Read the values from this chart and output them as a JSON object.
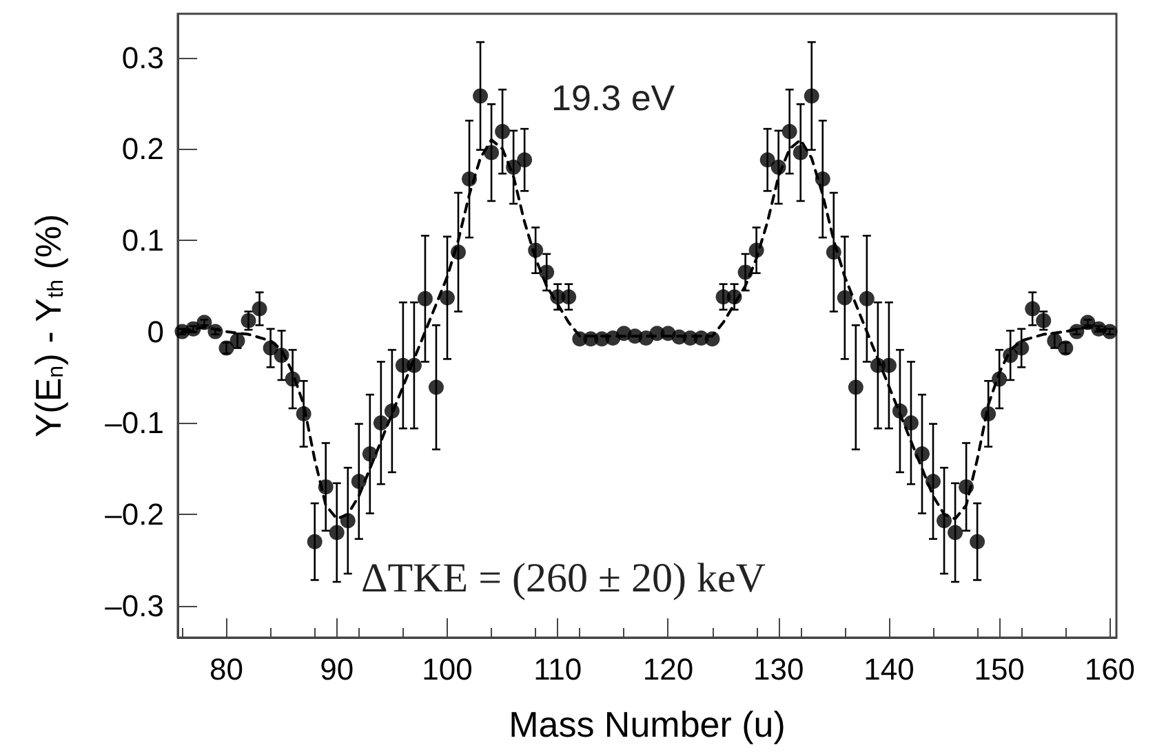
{
  "chart_data": {
    "type": "scatter",
    "xlabel": "Mass Number (u)",
    "ylabel": "Y(E$_{n}$) - Y$_{th}$ (%)",
    "annotations": [
      "19.3 eV",
      "ΔTKE = (260 ± 20) keV"
    ],
    "xlim": [
      75.6,
      160.6
    ],
    "xticks": [
      80,
      90,
      100,
      110,
      120,
      130,
      140,
      150,
      160
    ],
    "ylim": [
      -0.335,
      0.348
    ],
    "yticks": [
      {
        "value": -0.3,
        "label": "–0.3"
      },
      {
        "value": -0.2,
        "label": "–0.2"
      },
      {
        "value": -0.1,
        "label": "–0.1"
      },
      0,
      0.1,
      0.2,
      0.3
    ],
    "grid": false,
    "series": [
      {
        "color": "#000000",
        "marker": "circle",
        "x": [
          76,
          77,
          78,
          79,
          80,
          81,
          82,
          83,
          84,
          85,
          86,
          87,
          88,
          89,
          90,
          91,
          92,
          93,
          94,
          95,
          96,
          97,
          98,
          99,
          100,
          101,
          102,
          103,
          104,
          105,
          106,
          107,
          108,
          109,
          110,
          111,
          112,
          113,
          114,
          115,
          116,
          117,
          118,
          119,
          120,
          121,
          122,
          123,
          124,
          125,
          126,
          127,
          128,
          129,
          130,
          131,
          132,
          133,
          134,
          135,
          136,
          137,
          138,
          139,
          140,
          141,
          142,
          143,
          144,
          145,
          146,
          147,
          148,
          149,
          150,
          151,
          152,
          153,
          154,
          155,
          156,
          157,
          158,
          159,
          160
        ],
        "values": [
          0,
          0.003,
          0.01,
          0,
          -0.018,
          -0.01,
          0.012,
          0.025,
          -0.018,
          -0.026,
          -0.052,
          -0.09,
          -0.23,
          -0.17,
          -0.22,
          -0.207,
          -0.164,
          -0.134,
          -0.1,
          -0.087,
          -0.037,
          -0.037,
          0.036,
          -0.061,
          0.037,
          0.087,
          0.167,
          0.258,
          0.196,
          0.219,
          0.18,
          0.188,
          0.089,
          0.065,
          0.038,
          0.038,
          -0.008,
          -0.008,
          -0.008,
          -0.007,
          -0.002,
          -0.005,
          -0.007,
          -0.002,
          -0.002,
          -0.006,
          -0.007,
          -0.007,
          -0.008,
          0.038,
          0.038,
          0.065,
          0.089,
          0.188,
          0.18,
          0.219,
          0.196,
          0.258,
          0.167,
          0.087,
          0.037,
          -0.061,
          0.036,
          -0.037,
          -0.037,
          -0.087,
          -0.1,
          -0.134,
          -0.164,
          -0.207,
          -0.22,
          -0.17,
          -0.23,
          -0.09,
          -0.052,
          -0.026,
          -0.018,
          0.025,
          0.012,
          -0.01,
          -0.018,
          0,
          0.01,
          0.003,
          0
        ],
        "errors": [
          0.003,
          0.003,
          0.003,
          0.003,
          0.006,
          0.008,
          0.01,
          0.018,
          0.021,
          0.027,
          0.032,
          0.036,
          0.042,
          0.048,
          0.054,
          0.058,
          0.063,
          0.065,
          0.067,
          0.067,
          0.069,
          0.069,
          0.069,
          0.068,
          0.067,
          0.065,
          0.064,
          0.059,
          0.053,
          0.046,
          0.04,
          0.034,
          0.025,
          0.02,
          0.014,
          0.014,
          null,
          null,
          null,
          null,
          null,
          null,
          null,
          null,
          null,
          null,
          null,
          null,
          null,
          0.014,
          0.014,
          0.02,
          0.025,
          0.034,
          0.04,
          0.046,
          0.053,
          0.059,
          0.064,
          0.065,
          0.067,
          0.068,
          0.069,
          0.069,
          0.069,
          0.067,
          0.067,
          0.065,
          0.063,
          0.058,
          0.054,
          0.048,
          0.042,
          0.036,
          0.032,
          0.027,
          0.021,
          0.018,
          0.01,
          0.008,
          0.006,
          0.003,
          0.003,
          0.003,
          0.003
        ]
      },
      {
        "type": "line",
        "color": "#000000",
        "marker": "none",
        "line_style": "dashed",
        "x": [
          76,
          78,
          80,
          82,
          84,
          85,
          86,
          87,
          88,
          89,
          90,
          91,
          92,
          94,
          96,
          98,
          100,
          101,
          102,
          103,
          104,
          105,
          106,
          107,
          108,
          109,
          110,
          111,
          112,
          124,
          125,
          126,
          127,
          128,
          129,
          130,
          131,
          132,
          133,
          134,
          135,
          136,
          138,
          140,
          142,
          144,
          145,
          146,
          147,
          148,
          149,
          150,
          151,
          152,
          154,
          156,
          158,
          160
        ],
        "values": [
          0,
          0.005,
          0,
          -0.003,
          -0.01,
          -0.02,
          -0.045,
          -0.08,
          -0.14,
          -0.19,
          -0.205,
          -0.2,
          -0.18,
          -0.12,
          -0.06,
          0,
          0.06,
          0.1,
          0.15,
          0.19,
          0.21,
          0.2,
          0.17,
          0.12,
          0.08,
          0.05,
          0.03,
          0.01,
          -0.005,
          -0.005,
          0.01,
          0.03,
          0.05,
          0.08,
          0.12,
          0.17,
          0.2,
          0.21,
          0.19,
          0.15,
          0.1,
          0.06,
          0,
          -0.06,
          -0.12,
          -0.18,
          -0.2,
          -0.205,
          -0.19,
          -0.14,
          -0.08,
          -0.045,
          -0.02,
          -0.01,
          -0.003,
          0,
          0.005,
          0
        ]
      }
    ]
  }
}
